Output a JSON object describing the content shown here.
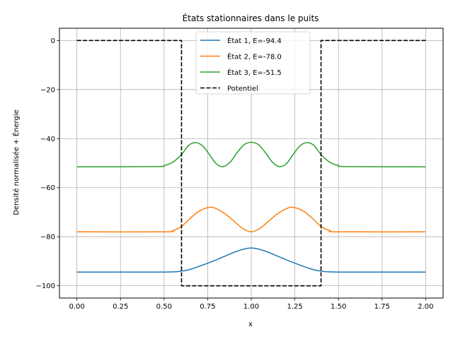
{
  "chart_data": {
    "type": "line",
    "title": "États stationnaires dans le puits",
    "xlabel": "x",
    "ylabel": "Densité normalisée + Énergie",
    "xlim": [
      -0.1,
      2.1
    ],
    "ylim": [
      -105,
      5
    ],
    "xticks": [
      0.0,
      0.25,
      0.5,
      0.75,
      1.0,
      1.25,
      1.5,
      1.75,
      2.0
    ],
    "xtick_labels": [
      "0.00",
      "0.25",
      "0.50",
      "0.75",
      "1.00",
      "1.25",
      "1.50",
      "1.75",
      "2.00"
    ],
    "yticks": [
      -100,
      -80,
      -60,
      -40,
      -20,
      0
    ],
    "ytick_labels": [
      "−100",
      "−80",
      "−60",
      "−40",
      "−20",
      "0"
    ],
    "grid": true,
    "legend_position": "top-center",
    "series": [
      {
        "name": "État 1, E=-94.4",
        "color": "#1f77b4",
        "style": "solid",
        "x": [
          0.0,
          0.5,
          0.6,
          0.65,
          0.7,
          0.75,
          0.8,
          0.85,
          0.9,
          0.95,
          1.0,
          1.05,
          1.1,
          1.15,
          1.2,
          1.25,
          1.3,
          1.35,
          1.4,
          1.5,
          2.0
        ],
        "y": [
          -94.4,
          -94.4,
          -94.0,
          -93.3,
          -92.1,
          -90.8,
          -89.4,
          -87.9,
          -86.4,
          -85.2,
          -84.6,
          -85.2,
          -86.4,
          -87.9,
          -89.4,
          -90.8,
          -92.1,
          -93.3,
          -94.0,
          -94.4,
          -94.4
        ]
      },
      {
        "name": "État 2, E=-78.0",
        "color": "#ff7f0e",
        "style": "solid",
        "x": [
          0.0,
          0.5,
          0.55,
          0.6,
          0.65,
          0.7,
          0.76,
          0.8,
          0.85,
          0.9,
          0.95,
          1.0,
          1.05,
          1.1,
          1.15,
          1.2,
          1.24,
          1.3,
          1.35,
          1.4,
          1.45,
          1.5,
          2.0
        ],
        "y": [
          -78.0,
          -78.0,
          -77.5,
          -75.8,
          -72.5,
          -69.6,
          -68.0,
          -68.6,
          -70.7,
          -73.6,
          -76.6,
          -78.0,
          -76.6,
          -73.6,
          -70.7,
          -68.6,
          -68.0,
          -69.6,
          -72.5,
          -75.8,
          -77.5,
          -78.0,
          -78.0
        ]
      },
      {
        "name": "État 3, E=-51.5",
        "color": "#2ca02c",
        "style": "solid",
        "x": [
          0.0,
          0.45,
          0.5,
          0.55,
          0.6,
          0.64,
          0.68,
          0.72,
          0.76,
          0.8,
          0.84,
          0.88,
          0.92,
          0.96,
          1.0,
          1.04,
          1.08,
          1.12,
          1.16,
          1.2,
          1.24,
          1.28,
          1.32,
          1.36,
          1.4,
          1.45,
          1.5,
          1.55,
          2.0
        ],
        "y": [
          -51.5,
          -51.4,
          -51.0,
          -49.6,
          -46.5,
          -42.8,
          -41.6,
          -42.9,
          -46.5,
          -50.3,
          -51.4,
          -49.5,
          -45.6,
          -42.4,
          -41.5,
          -42.4,
          -45.6,
          -49.5,
          -51.4,
          -50.3,
          -46.5,
          -42.9,
          -41.6,
          -42.8,
          -46.5,
          -49.6,
          -51.0,
          -51.4,
          -51.5
        ]
      },
      {
        "name": "Potentiel",
        "color": "#000000",
        "style": "dashed",
        "x": [
          0.0,
          0.6,
          0.6,
          1.4,
          1.4,
          2.0
        ],
        "y": [
          0,
          0,
          -100,
          -100,
          0,
          0
        ]
      }
    ]
  }
}
